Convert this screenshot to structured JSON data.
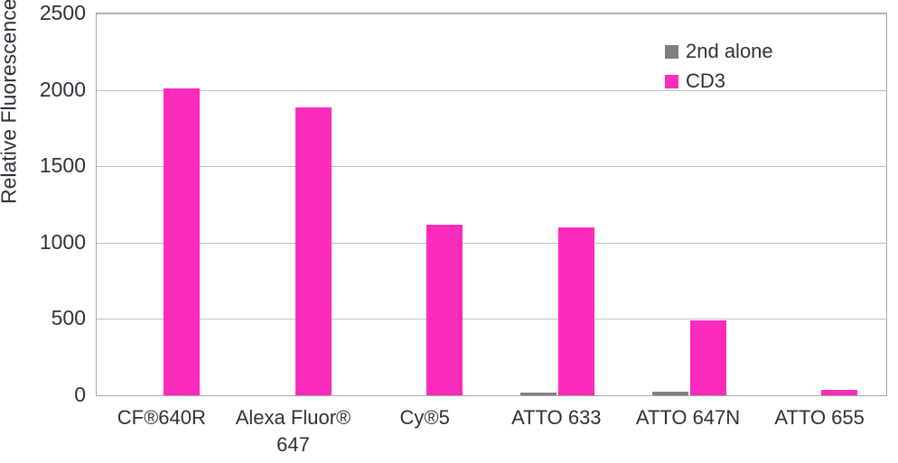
{
  "chart_data": {
    "type": "bar",
    "title": "",
    "xlabel": "",
    "ylabel": "Relative Fluorescence",
    "categories": [
      "CF®640R",
      "Alexa Fluor® 647",
      "Cy®5",
      "ATTO 633",
      "ATTO 647N",
      "ATTO 655"
    ],
    "series": [
      {
        "name": "2nd alone",
        "color": "#808080",
        "values": [
          0,
          0,
          0,
          18,
          25,
          0
        ]
      },
      {
        "name": "CD3",
        "color": "#fb2bbb",
        "values": [
          2010,
          1885,
          1120,
          1100,
          490,
          35
        ]
      }
    ],
    "ylim": [
      0,
      2500
    ],
    "ytick_interval": 500,
    "yticks": [
      "0",
      "500",
      "1000",
      "1500",
      "2000",
      "2500"
    ],
    "grid": "horizontal",
    "legend_position": "inside-top-right",
    "gridline_color": "#bfbfbf",
    "plot_border_color": "#a6a6a6",
    "text_color": "#30303a"
  }
}
